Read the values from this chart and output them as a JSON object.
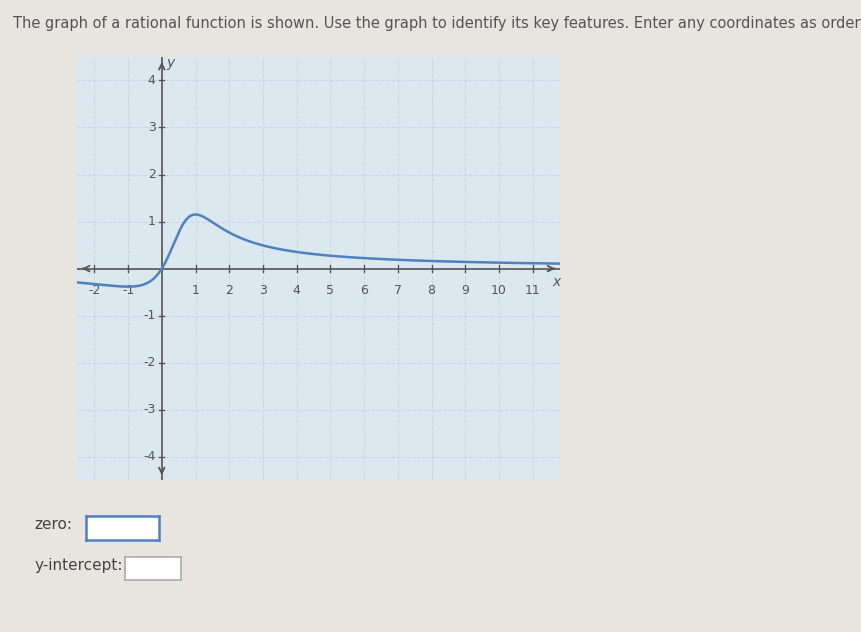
{
  "title": "The graph of a rational function is shown. Use the graph to identify its key features. Enter any coordinates as ordered pairs.",
  "xmin": -2,
  "xmax": 11,
  "ymin": -4,
  "ymax": 4,
  "xticks": [
    -2,
    -1,
    1,
    2,
    3,
    4,
    5,
    6,
    7,
    8,
    9,
    10,
    11
  ],
  "yticks": [
    -4,
    -3,
    -2,
    -1,
    1,
    2,
    3,
    4
  ],
  "grid_color": "#c5d8e8",
  "axis_color": "#555555",
  "curve_color": "#5080c0",
  "curve_linewidth": 1.8,
  "graph_bg": "#dce8f0",
  "page_bg": "#e8e4e0",
  "zero_label": "zero:",
  "yintercept_label": "y-intercept:",
  "input_box_color": "#ffffff",
  "input_border_zero": "#5080c0",
  "input_border_yint": "#aaaaaa",
  "text_color": "#444444",
  "title_color": "#555555",
  "font_size_title": 10.5,
  "font_size_ticks": 9,
  "font_size_labels": 10
}
